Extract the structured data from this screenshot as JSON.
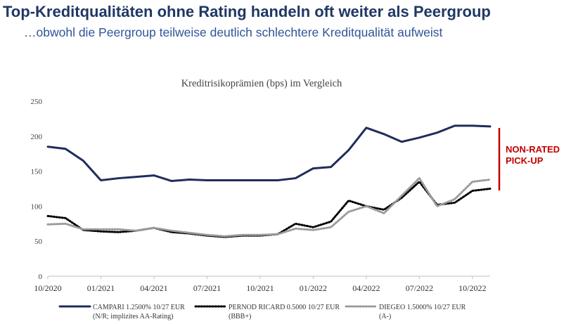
{
  "header": {
    "title": "Top-Kreditqualitäten ohne Rating handeln oft weiter als Peergroup",
    "subtitle": "…obwohl die Peergroup teilweise deutlich schlechtere Kreditqualität aufweist"
  },
  "chart_data": {
    "type": "line",
    "title": "Kreditrisikoprämien (bps) im Vergleich",
    "x": [
      "10/2020",
      "11/2020",
      "12/2020",
      "01/2021",
      "02/2021",
      "03/2021",
      "04/2021",
      "05/2021",
      "06/2021",
      "07/2021",
      "08/2021",
      "09/2021",
      "10/2021",
      "11/2021",
      "12/2021",
      "01/2022",
      "02/2022",
      "03/2022",
      "04/2022",
      "05/2022",
      "06/2022",
      "07/2022",
      "08/2022",
      "09/2022",
      "10/2022",
      "11/2022"
    ],
    "xlim": [
      "10/2020",
      "11/2022"
    ],
    "xticks": [
      "10/2020",
      "01/2021",
      "04/2021",
      "07/2021",
      "10/2021",
      "01/2022",
      "04/2022",
      "07/2022",
      "10/2022"
    ],
    "ylim": [
      0,
      250
    ],
    "yticks": [
      0,
      50,
      100,
      150,
      200,
      250
    ],
    "grid": false,
    "series": [
      {
        "name": "CAMPARI 1.2500% 10/27 EUR",
        "rating": "(N/R; implizites AA-Rating)",
        "color": "#1f2d5c",
        "dash": "solid",
        "values": [
          185,
          182,
          165,
          137,
          140,
          142,
          144,
          136,
          138,
          137,
          137,
          137,
          137,
          137,
          140,
          154,
          156,
          180,
          212,
          203,
          192,
          198,
          205,
          215,
          215,
          214
        ]
      },
      {
        "name": "PERNOD RICARD 0.5000 10/27 EUR",
        "rating": "(BBB+)",
        "color": "#000000",
        "dash": "dotted",
        "values": [
          86,
          83,
          66,
          64,
          63,
          65,
          69,
          63,
          61,
          58,
          56,
          58,
          58,
          60,
          75,
          70,
          78,
          108,
          100,
          95,
          112,
          135,
          102,
          105,
          122,
          125
        ]
      },
      {
        "name": "DIEGEO 1.5000% 10/27 EUR",
        "rating": "(A-)",
        "color": "#9a9a9a",
        "dash": "dotted",
        "values": [
          74,
          75,
          67,
          67,
          67,
          65,
          69,
          65,
          62,
          59,
          57,
          59,
          59,
          60,
          68,
          66,
          70,
          92,
          100,
          90,
          115,
          140,
          100,
          110,
          135,
          138
        ]
      }
    ],
    "annotation": [
      "NON-RATED",
      "PICK-UP"
    ]
  }
}
